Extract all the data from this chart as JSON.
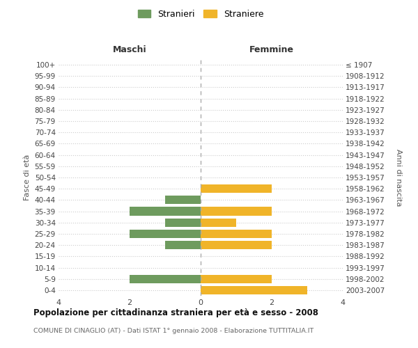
{
  "age_groups": [
    "0-4",
    "5-9",
    "10-14",
    "15-19",
    "20-24",
    "25-29",
    "30-34",
    "35-39",
    "40-44",
    "45-49",
    "50-54",
    "55-59",
    "60-64",
    "65-69",
    "70-74",
    "75-79",
    "80-84",
    "85-89",
    "90-94",
    "95-99",
    "100+"
  ],
  "birth_years": [
    "2003-2007",
    "1998-2002",
    "1993-1997",
    "1988-1992",
    "1983-1987",
    "1978-1982",
    "1973-1977",
    "1968-1972",
    "1963-1967",
    "1958-1962",
    "1953-1957",
    "1948-1952",
    "1943-1947",
    "1938-1942",
    "1933-1937",
    "1928-1932",
    "1923-1927",
    "1918-1922",
    "1913-1917",
    "1908-1912",
    "≤ 1907"
  ],
  "maschi": [
    0,
    2,
    0,
    0,
    1,
    2,
    1,
    2,
    1,
    0,
    0,
    0,
    0,
    0,
    0,
    0,
    0,
    0,
    0,
    0,
    0
  ],
  "femmine": [
    3,
    2,
    0,
    0,
    2,
    2,
    1,
    2,
    0,
    2,
    0,
    0,
    0,
    0,
    0,
    0,
    0,
    0,
    0,
    0,
    0
  ],
  "color_maschi": "#6e9b5e",
  "color_femmine": "#f0b429",
  "background_color": "#ffffff",
  "grid_color": "#cccccc",
  "title": "Popolazione per cittadinanza straniera per età e sesso - 2008",
  "subtitle": "COMUNE DI CINAGLIO (AT) - Dati ISTAT 1° gennaio 2008 - Elaborazione TUTTITALIA.IT",
  "xlabel_left": "Maschi",
  "xlabel_right": "Femmine",
  "ylabel_left": "Fasce di età",
  "ylabel_right": "Anni di nascita",
  "legend_stranieri": "Stranieri",
  "legend_straniere": "Straniere",
  "xlim": 4,
  "bar_height": 0.75
}
